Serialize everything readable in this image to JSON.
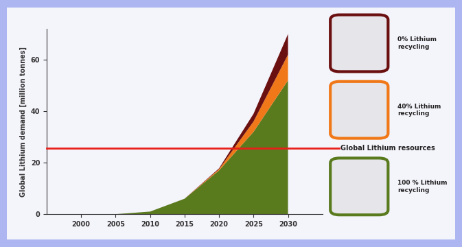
{
  "chart_data": {
    "type": "area",
    "stacked": true,
    "y_label": "Global Lithium demand [million tonnes]",
    "x": [
      2000,
      2005,
      2010,
      2015,
      2020,
      2025,
      2030
    ],
    "series": [
      {
        "name": "100 % Lithium recycling",
        "color": "#5a7a1e",
        "values": [
          0,
          0,
          1,
          6,
          17,
          32,
          52
        ]
      },
      {
        "name": "40% Lithium recycling",
        "color": "#f07818",
        "values": [
          0,
          0,
          0,
          0,
          0.5,
          4,
          10
        ]
      },
      {
        "name": "0% Lithium recycling",
        "color": "#6b1010",
        "values": [
          0,
          0,
          0,
          0,
          0.3,
          3,
          8
        ]
      }
    ],
    "reference_line": {
      "label": "Global Lithium resources",
      "value": 25.5,
      "color": "#e8201a"
    },
    "xlim": [
      1995,
      2035
    ],
    "xticks": [
      2000,
      2005,
      2010,
      2015,
      2020,
      2025,
      2030
    ],
    "ylim": [
      0,
      72
    ],
    "yticks": [
      0,
      20,
      40,
      60
    ],
    "grid": false
  }
}
